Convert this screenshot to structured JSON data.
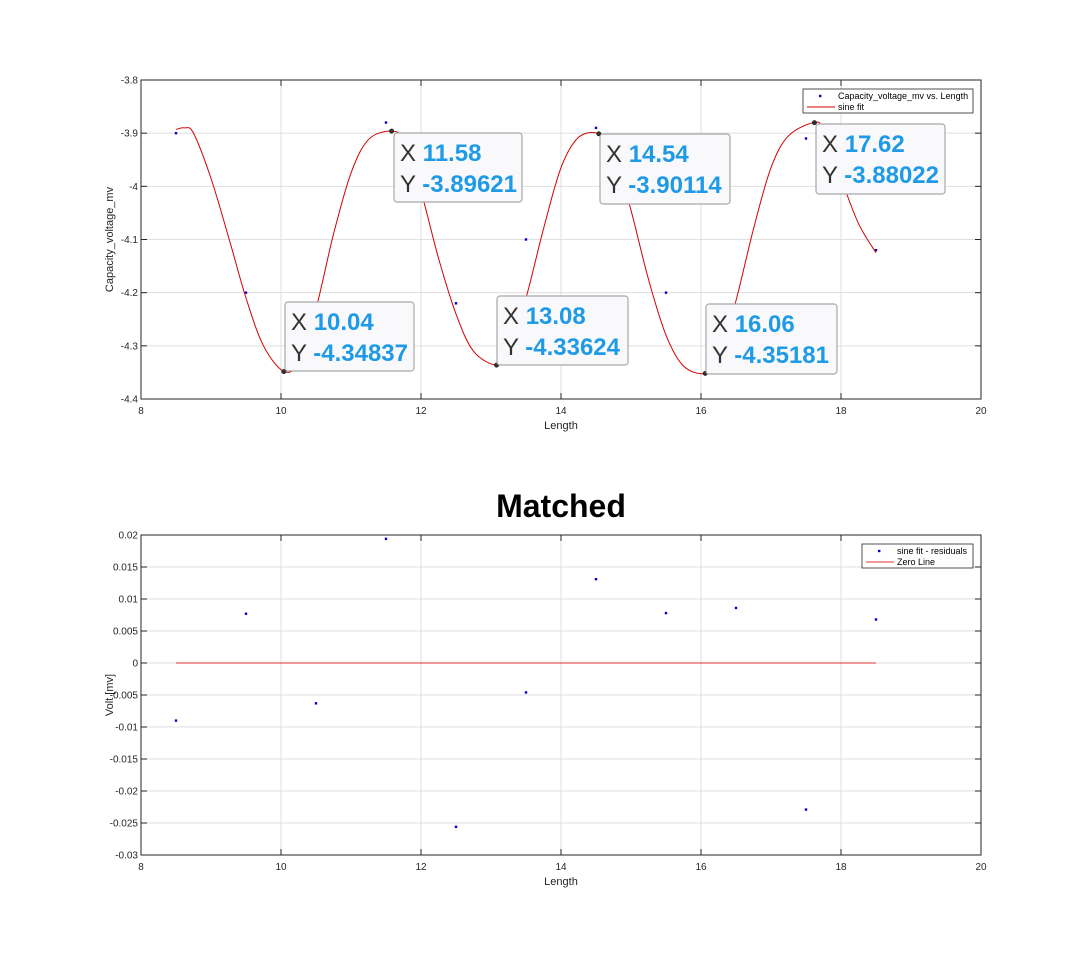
{
  "chart_data": [
    {
      "type": "scatter",
      "title": "",
      "xlabel": "Length",
      "ylabel": "Capacity_voltage_mv",
      "xlim": [
        8,
        20
      ],
      "ylim": [
        -4.4,
        -3.8
      ],
      "xticks": [
        8,
        10,
        12,
        14,
        16,
        18,
        20
      ],
      "yticks": [
        -4.4,
        -4.3,
        -4.2,
        -4.1,
        -4.0,
        -3.9,
        -3.8
      ],
      "xtick_labels": [
        "8",
        "10",
        "12",
        "14",
        "16",
        "18",
        "20"
      ],
      "ytick_labels": [
        "-4.4",
        "-4.3",
        "-4.2",
        "-4.1",
        "-4",
        "-3.9",
        "-3.8"
      ],
      "grid": true,
      "legend_position": "top-right",
      "series": [
        {
          "name": "Capacity_voltage_mv vs. Length",
          "kind": "points",
          "color": "#0000cc",
          "x": [
            8.5,
            9.5,
            10.5,
            11.5,
            12.5,
            13.5,
            14.5,
            15.5,
            16.5,
            17.5,
            18.5
          ],
          "y": [
            -3.9,
            -4.2,
            -4.3,
            -3.88,
            -4.22,
            -4.1,
            -3.89,
            -4.2,
            -4.25,
            -3.91,
            -4.12
          ]
        },
        {
          "name": "sine fit",
          "kind": "curve",
          "color": "#d40000",
          "x": [
            8.5,
            8.62,
            8.75,
            9.0,
            9.25,
            9.5,
            9.75,
            10.04,
            10.25,
            10.5,
            10.75,
            11.0,
            11.25,
            11.58,
            11.75,
            12.0,
            12.25,
            12.5,
            12.75,
            13.08,
            13.25,
            13.5,
            13.75,
            14.0,
            14.25,
            14.54,
            14.75,
            15.0,
            15.25,
            15.5,
            15.75,
            16.06,
            16.25,
            16.5,
            16.75,
            17.0,
            17.25,
            17.62,
            17.75,
            18.0,
            18.25,
            18.5
          ],
          "y": [
            -3.893,
            -3.89,
            -3.9,
            -3.985,
            -4.095,
            -4.21,
            -4.3,
            -4.348,
            -4.33,
            -4.23,
            -4.09,
            -3.975,
            -3.912,
            -3.896,
            -3.915,
            -4.01,
            -4.135,
            -4.24,
            -4.31,
            -4.336,
            -4.31,
            -4.21,
            -4.08,
            -3.965,
            -3.908,
            -3.901,
            -3.93,
            -4.045,
            -4.175,
            -4.28,
            -4.338,
            -4.352,
            -4.325,
            -4.215,
            -4.08,
            -3.965,
            -3.905,
            -3.88,
            -3.895,
            -3.985,
            -4.07,
            -4.125
          ]
        }
      ],
      "annotations": [
        {
          "x_label": "X",
          "y_label": "Y",
          "x": "10.04",
          "y": "-4.34837",
          "px": 10.04,
          "py": -4.34837
        },
        {
          "x_label": "X",
          "y_label": "Y",
          "x": "11.58",
          "y": "-3.89621",
          "px": 11.58,
          "py": -3.89621
        },
        {
          "x_label": "X",
          "y_label": "Y",
          "x": "13.08",
          "y": "-4.33624",
          "px": 13.08,
          "py": -4.33624
        },
        {
          "x_label": "X",
          "y_label": "Y",
          "x": "14.54",
          "y": "-3.90114",
          "px": 14.54,
          "py": -3.90114
        },
        {
          "x_label": "X",
          "y_label": "Y",
          "x": "16.06",
          "y": "-4.35181",
          "px": 16.06,
          "py": -4.35181
        },
        {
          "x_label": "X",
          "y_label": "Y",
          "x": "17.62",
          "y": "-3.88022",
          "px": 17.62,
          "py": -3.88022
        }
      ]
    },
    {
      "type": "scatter",
      "title": "Matched",
      "xlabel": "Length",
      "ylabel": "Volt [mv]",
      "xlim": [
        8,
        20
      ],
      "ylim": [
        -0.03,
        0.02
      ],
      "xticks": [
        8,
        10,
        12,
        14,
        16,
        18,
        20
      ],
      "yticks": [
        -0.03,
        -0.025,
        -0.02,
        -0.015,
        -0.01,
        -0.005,
        0,
        0.005,
        0.01,
        0.015,
        0.02
      ],
      "xtick_labels": [
        "8",
        "10",
        "12",
        "14",
        "16",
        "18",
        "20"
      ],
      "ytick_labels": [
        "-0.03",
        "-0.025",
        "-0.02",
        "-0.015",
        "-0.01",
        "-0.005",
        "0",
        "0.005",
        "0.01",
        "0.015",
        "0.02"
      ],
      "grid": true,
      "legend_position": "top-right",
      "series": [
        {
          "name": "sine fit - residuals",
          "kind": "points",
          "color": "#0000cc",
          "x": [
            8.5,
            9.5,
            10.5,
            11.5,
            12.5,
            13.5,
            14.5,
            15.5,
            16.5,
            17.5,
            18.5
          ],
          "y": [
            -0.009,
            0.0077,
            -0.0063,
            0.0194,
            -0.0256,
            -0.0046,
            0.0131,
            0.0078,
            0.0086,
            -0.0229,
            0.0068
          ]
        },
        {
          "name": "Zero Line",
          "kind": "line",
          "color": "#e03030",
          "x": [
            8.5,
            18.5
          ],
          "y": [
            0,
            0
          ]
        }
      ]
    }
  ]
}
